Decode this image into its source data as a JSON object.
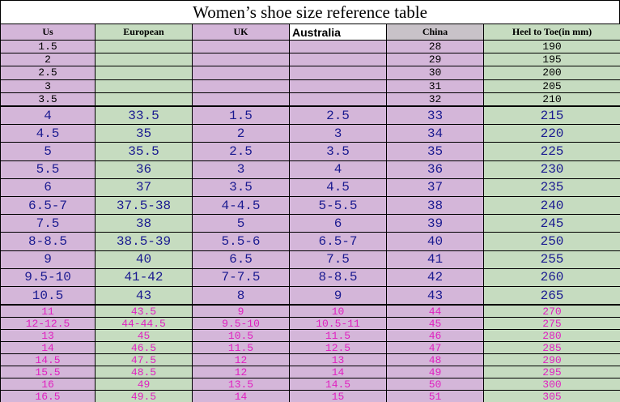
{
  "title": "Women’s shoe size reference table",
  "table": {
    "headers": [
      "Us",
      "European",
      "UK",
      "Australia",
      "China",
      "Heel to Toe(in mm)"
    ],
    "sections": [
      {
        "rows": [
          [
            "1.5",
            null,
            null,
            null,
            "28",
            "190"
          ],
          [
            "2",
            null,
            null,
            null,
            "29",
            "195"
          ],
          [
            "2.5",
            null,
            null,
            null,
            "30",
            "200"
          ],
          [
            "3",
            null,
            null,
            null,
            "31",
            "205"
          ],
          [
            "3.5",
            null,
            null,
            null,
            "32",
            "210"
          ]
        ]
      },
      {
        "rows": [
          [
            "4",
            "33.5",
            "1.5",
            "2.5",
            "33",
            "215"
          ],
          [
            "4.5",
            "35",
            "2",
            "3",
            "34",
            "220"
          ],
          [
            "5",
            "35.5",
            "2.5",
            "3.5",
            "35",
            "225"
          ],
          [
            "5.5",
            "36",
            "3",
            "4",
            "36",
            "230"
          ],
          [
            "6",
            "37",
            "3.5",
            "4.5",
            "37",
            "235"
          ],
          [
            "6.5-7",
            "37.5-38",
            "4-4.5",
            "5-5.5",
            "38",
            "240"
          ],
          [
            "7.5",
            "38",
            "5",
            "6",
            "39",
            "245"
          ],
          [
            "8-8.5",
            "38.5-39",
            "5.5-6",
            "6.5-7",
            "40",
            "250"
          ],
          [
            "9",
            "40",
            "6.5",
            "7.5",
            "41",
            "255"
          ],
          [
            "9.5-10",
            "41-42",
            "7-7.5",
            "8-8.5",
            "42",
            "260"
          ],
          [
            "10.5",
            "43",
            "8",
            "9",
            "43",
            "265"
          ]
        ]
      },
      {
        "rows": [
          [
            "11",
            "43.5",
            "9",
            "10",
            "44",
            "270"
          ],
          [
            "12-12.5",
            "44-44.5",
            "9.5-10",
            "10.5-11",
            "45",
            "275"
          ],
          [
            "13",
            "45",
            "10.5",
            "11.5",
            "46",
            "280"
          ],
          [
            "14",
            "46.5",
            "11.5",
            "12.5",
            "47",
            "285"
          ],
          [
            "14.5",
            "47.5",
            "12",
            "13",
            "48",
            "290"
          ],
          [
            "15.5",
            "48.5",
            "12",
            "14",
            "49",
            "295"
          ],
          [
            "16",
            "49",
            "13.5",
            "14.5",
            "50",
            "300"
          ],
          [
            "16.5",
            "49.5",
            "14",
            "15",
            "51",
            "305"
          ]
        ]
      }
    ]
  }
}
